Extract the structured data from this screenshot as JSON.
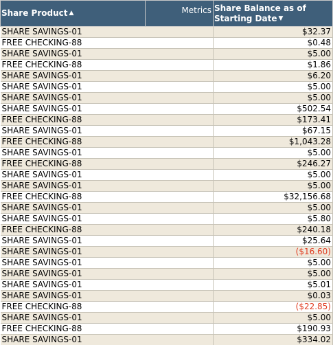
{
  "columns": {
    "product": "Share Product",
    "metrics": "Metrics",
    "balance_line1": "Share Balance as of",
    "balance_line2": "Starting Date",
    "product_sort_icon": "sort-ascending-icon",
    "balance_sort_icon": "sort-descending-icon"
  },
  "colors": {
    "header_bg": "#3f5f7a",
    "row_alt_bg": "#efe9dc",
    "negative_text": "#e03a1e"
  },
  "rows": [
    {
      "product": "SHARE SAVINGS-01",
      "balance": "$32.37"
    },
    {
      "product": "FREE CHECKING-88",
      "balance": "$0.48"
    },
    {
      "product": "SHARE SAVINGS-01",
      "balance": "$5.00"
    },
    {
      "product": "FREE CHECKING-88",
      "balance": "$1.86"
    },
    {
      "product": "SHARE SAVINGS-01",
      "balance": "$6.20"
    },
    {
      "product": "SHARE SAVINGS-01",
      "balance": "$5.00"
    },
    {
      "product": "SHARE SAVINGS-01",
      "balance": "$5.00"
    },
    {
      "product": "SHARE SAVINGS-01",
      "balance": "$502.54"
    },
    {
      "product": "FREE CHECKING-88",
      "balance": "$173.41"
    },
    {
      "product": "SHARE SAVINGS-01",
      "balance": "$67.15"
    },
    {
      "product": "FREE CHECKING-88",
      "balance": "$1,043.28"
    },
    {
      "product": "SHARE SAVINGS-01",
      "balance": "$5.00"
    },
    {
      "product": "FREE CHECKING-88",
      "balance": "$246.27"
    },
    {
      "product": "SHARE SAVINGS-01",
      "balance": "$5.00"
    },
    {
      "product": "SHARE SAVINGS-01",
      "balance": "$5.00"
    },
    {
      "product": "FREE CHECKING-88",
      "balance": "$32,156.68"
    },
    {
      "product": "SHARE SAVINGS-01",
      "balance": "$5.00"
    },
    {
      "product": "SHARE SAVINGS-01",
      "balance": "$5.80"
    },
    {
      "product": "FREE CHECKING-88",
      "balance": "$240.18"
    },
    {
      "product": "SHARE SAVINGS-01",
      "balance": "$25.64"
    },
    {
      "product": "SHARE SAVINGS-01",
      "balance": "($16.60)",
      "negative": true
    },
    {
      "product": "SHARE SAVINGS-01",
      "balance": "$5.00"
    },
    {
      "product": "SHARE SAVINGS-01",
      "balance": "$5.00"
    },
    {
      "product": "SHARE SAVINGS-01",
      "balance": "$5.01"
    },
    {
      "product": "SHARE SAVINGS-01",
      "balance": "$0.03"
    },
    {
      "product": "FREE CHECKING-88",
      "balance": "($22.85)",
      "negative": true
    },
    {
      "product": "SHARE SAVINGS-01",
      "balance": "$5.00"
    },
    {
      "product": "FREE CHECKING-88",
      "balance": "$190.93"
    },
    {
      "product": "SHARE SAVINGS-01",
      "balance": "$334.02"
    }
  ]
}
